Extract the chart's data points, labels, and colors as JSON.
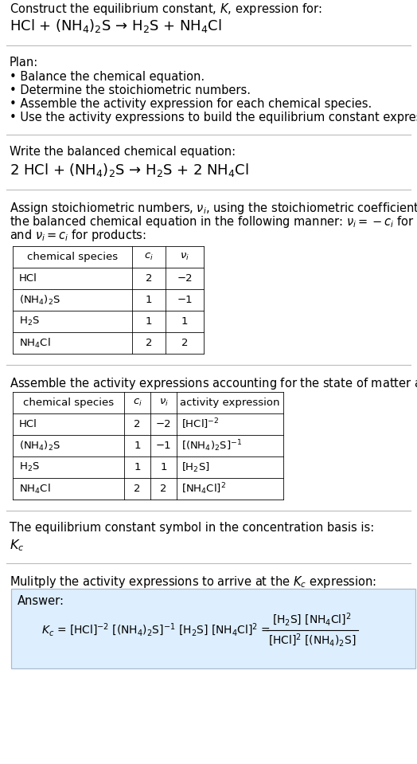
{
  "bg_color": "#ffffff",
  "text_color": "#000000",
  "title_line1": "Construct the equilibrium constant, $K$, expression for:",
  "title_line2": "HCl + (NH$_4$)$_2$S → H$_2$S + NH$_4$Cl",
  "plan_header": "Plan:",
  "plan_bullets": [
    "• Balance the chemical equation.",
    "• Determine the stoichiometric numbers.",
    "• Assemble the activity expression for each chemical species.",
    "• Use the activity expressions to build the equilibrium constant expression."
  ],
  "balanced_header": "Write the balanced chemical equation:",
  "balanced_eq": "2 HCl + (NH$_4$)$_2$S → H$_2$S + 2 NH$_4$Cl",
  "stoich_intro_lines": [
    "Assign stoichiometric numbers, $\\nu_i$, using the stoichiometric coefficients, $c_i$, from",
    "the balanced chemical equation in the following manner: $\\nu_i = -c_i$ for reactants",
    "and $\\nu_i = c_i$ for products:"
  ],
  "table1_headers": [
    "chemical species",
    "$c_i$",
    "$\\nu_i$"
  ],
  "table1_rows": [
    [
      "HCl",
      "2",
      "−2"
    ],
    [
      "(NH$_4$)$_2$S",
      "1",
      "−1"
    ],
    [
      "H$_2$S",
      "1",
      "1"
    ],
    [
      "NH$_4$Cl",
      "2",
      "2"
    ]
  ],
  "activity_intro": "Assemble the activity expressions accounting for the state of matter and $\\nu_i$:",
  "table2_headers": [
    "chemical species",
    "$c_i$",
    "$\\nu_i$",
    "activity expression"
  ],
  "table2_rows": [
    [
      "HCl",
      "2",
      "−2",
      "[HCl]$^{-2}$"
    ],
    [
      "(NH$_4$)$_2$S",
      "1",
      "−1",
      "[(NH$_4$)$_2$S]$^{-1}$"
    ],
    [
      "H$_2$S",
      "1",
      "1",
      "[H$_2$S]"
    ],
    [
      "NH$_4$Cl",
      "2",
      "2",
      "[NH$_4$Cl]$^2$"
    ]
  ],
  "kc_text1": "The equilibrium constant symbol in the concentration basis is:",
  "kc_symbol": "$K_c$",
  "multiply_text": "Mulitply the activity expressions to arrive at the $K_c$ expression:",
  "answer_label": "Answer:",
  "answer_box_color": "#ddeeff",
  "answer_border_color": "#aabbcc"
}
